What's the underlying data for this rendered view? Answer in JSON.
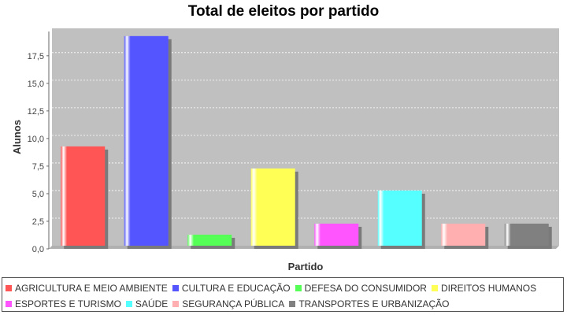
{
  "chart_data": {
    "type": "bar",
    "title": "Total de eleitos por partido",
    "xlabel": "Partido",
    "ylabel": "Alunos",
    "ylim": [
      0,
      19.7
    ],
    "yticks": [
      "0,0",
      "2,5",
      "5,0",
      "7,5",
      "10,0",
      "12,5",
      "15,0",
      "17,5"
    ],
    "grid": true,
    "legend_position": "bottom",
    "categories": [
      "AGRICULTURA E MEIO AMBIENTE",
      "CULTURA E EDUCAÇÃO",
      "DEFESA DO CONSUMIDOR",
      "DIREITOS HUMANOS",
      "ESPORTES E TURISMO",
      "SAÚDE",
      "SEGURANÇA PÚBLICA",
      "TRANSPORTES E URBANIZAÇÃO"
    ],
    "values": [
      9,
      19,
      1,
      7,
      2,
      5,
      2,
      2
    ],
    "colors": [
      "#ff5555",
      "#5555ff",
      "#55ff55",
      "#ffff55",
      "#ff55ff",
      "#55ffff",
      "#ffafaf",
      "#808080"
    ]
  },
  "legend": {
    "rows": [
      [
        {
          "label": "AGRICULTURA E MEIO AMBIENTE",
          "color": "#ff5555"
        },
        {
          "label": "CULTURA E EDUCAÇÃO",
          "color": "#5555ff"
        },
        {
          "label": "DEFESA DO CONSUMIDOR",
          "color": "#55ff55"
        },
        {
          "label": "DIREITOS HUMANOS",
          "color": "#ffff55"
        }
      ],
      [
        {
          "label": "ESPORTES E TURISMO",
          "color": "#ff55ff"
        },
        {
          "label": "SAÚDE",
          "color": "#55ffff"
        },
        {
          "label": "SEGURANÇA PÚBLICA",
          "color": "#ffafaf"
        },
        {
          "label": "TRANSPORTES E URBANIZAÇÃO",
          "color": "#808080"
        }
      ]
    ]
  }
}
